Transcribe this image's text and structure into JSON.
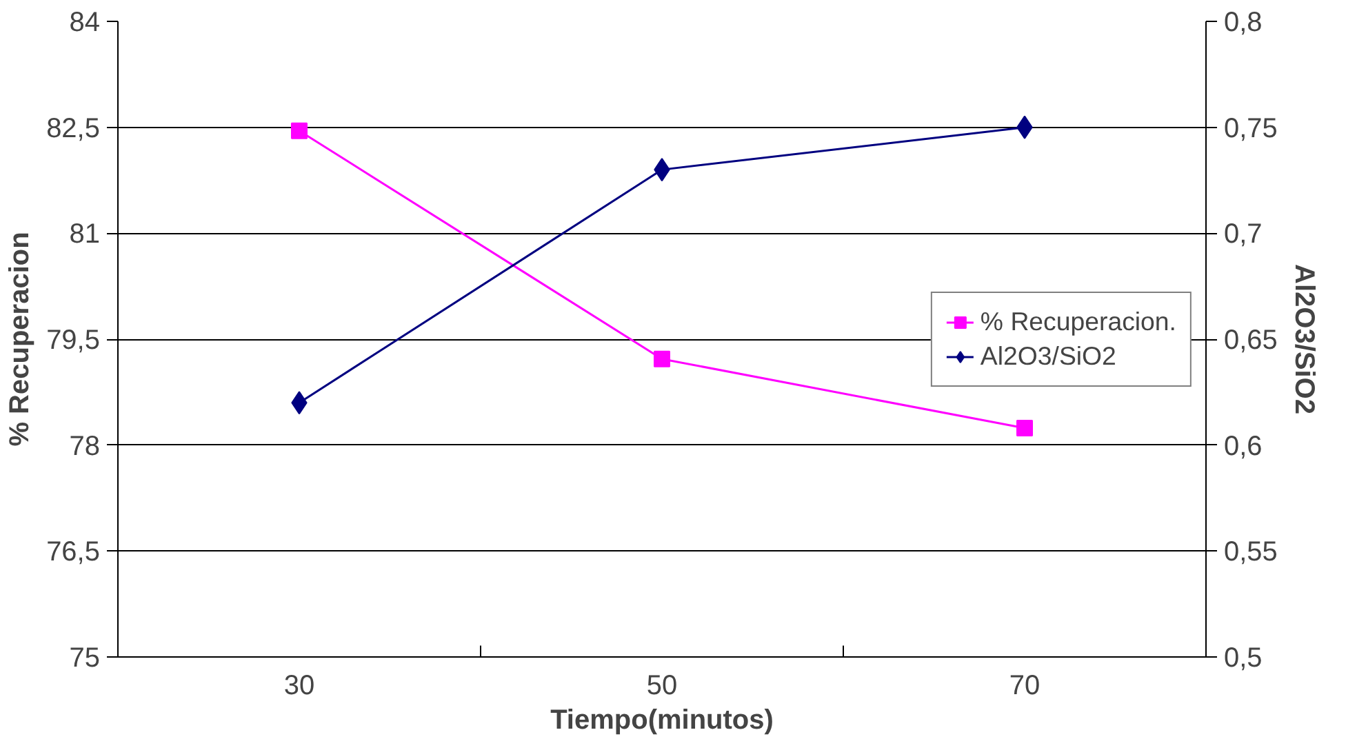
{
  "chart_data": {
    "type": "line",
    "xlabel": "Tiempo(minutos)",
    "ylabel": "% Recuperacion",
    "y2label": "Al2O3/SiO2",
    "categories": [
      "30",
      "50",
      "70"
    ],
    "series": [
      {
        "name": "% Recuperacion.",
        "color": "#ff00ff",
        "marker": "square",
        "values": [
          82.45,
          79.22,
          78.24
        ]
      },
      {
        "name": "Al2O3/SiO2",
        "color": "#000080",
        "marker": "diamond",
        "axis": "y2",
        "values": [
          0.62,
          0.73,
          0.75
        ]
      }
    ],
    "ylim": [
      75,
      84
    ],
    "yticks": [
      75,
      {
        "value": 76.5,
        "label": "76,5"
      },
      78,
      {
        "value": 79.5,
        "label": "79,5"
      },
      81,
      {
        "value": 82.5,
        "label": "82,5"
      },
      84
    ],
    "y2lim": [
      0.5,
      0.8
    ],
    "y2ticks": [
      {
        "value": 0.5,
        "label": "0,5"
      },
      {
        "value": 0.55,
        "label": "0,55"
      },
      {
        "value": 0.6,
        "label": "0,6"
      },
      {
        "value": 0.65,
        "label": "0,65"
      },
      {
        "value": 0.7,
        "label": "0,7"
      },
      {
        "value": 0.75,
        "label": "0,75"
      },
      {
        "value": 0.8,
        "label": "0,8"
      }
    ],
    "grid": "y",
    "legend": "right",
    "line_style": "solid"
  }
}
